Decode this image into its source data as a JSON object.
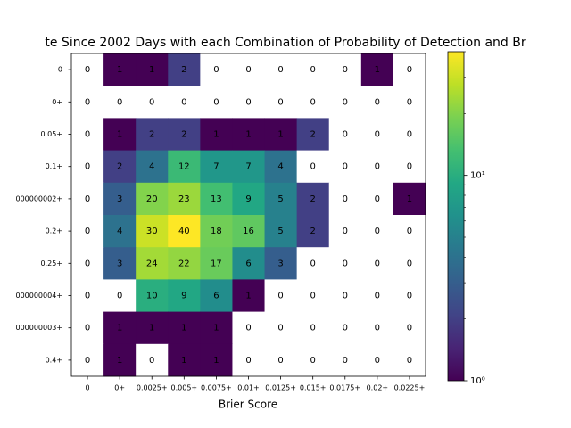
{
  "chart_data": {
    "type": "heatmap",
    "title": "te Since 2002 Days with each Combination of Probability of Detection and Br",
    "xlabel": "Brier Score",
    "categories": [
      "0",
      "0+",
      "0.0025+",
      "0.005+",
      "0.0075+",
      "0.01+",
      "0.0125+",
      "0.015+",
      "0.0175+",
      "0.02+",
      "0.0225+"
    ],
    "rows": [
      "0",
      "0+",
      "0.05+",
      "0.1+",
      "000000002+",
      "0.2+",
      "0.25+",
      "000000004+",
      "000000003+",
      "0.4+"
    ],
    "values": [
      [
        0,
        1,
        1,
        2,
        0,
        0,
        0,
        0,
        0,
        1,
        0
      ],
      [
        0,
        0,
        0,
        0,
        0,
        0,
        0,
        0,
        0,
        0,
        0
      ],
      [
        0,
        1,
        2,
        2,
        1,
        1,
        1,
        2,
        0,
        0,
        0
      ],
      [
        0,
        2,
        4,
        12,
        7,
        7,
        4,
        0,
        0,
        0,
        0
      ],
      [
        0,
        3,
        20,
        23,
        13,
        9,
        5,
        2,
        0,
        0,
        1
      ],
      [
        0,
        4,
        30,
        40,
        18,
        16,
        5,
        2,
        0,
        0,
        0
      ],
      [
        0,
        3,
        24,
        22,
        17,
        6,
        3,
        0,
        0,
        0,
        0
      ],
      [
        0,
        0,
        10,
        9,
        6,
        1,
        0,
        0,
        0,
        0,
        0
      ],
      [
        0,
        1,
        1,
        1,
        1,
        0,
        0,
        0,
        0,
        0,
        0
      ],
      [
        0,
        1,
        0,
        1,
        1,
        0,
        0,
        0,
        0,
        0,
        0
      ]
    ],
    "colormap": "viridis",
    "colorbar": {
      "scale": "log",
      "lim": [
        1,
        40
      ],
      "ticks": [
        {
          "value": 1,
          "label": "10⁰"
        },
        {
          "value": 10,
          "label": "10¹"
        }
      ],
      "minor_ticks": [
        2,
        3,
        4,
        5,
        6,
        7,
        8,
        9,
        20,
        30,
        40
      ]
    }
  }
}
